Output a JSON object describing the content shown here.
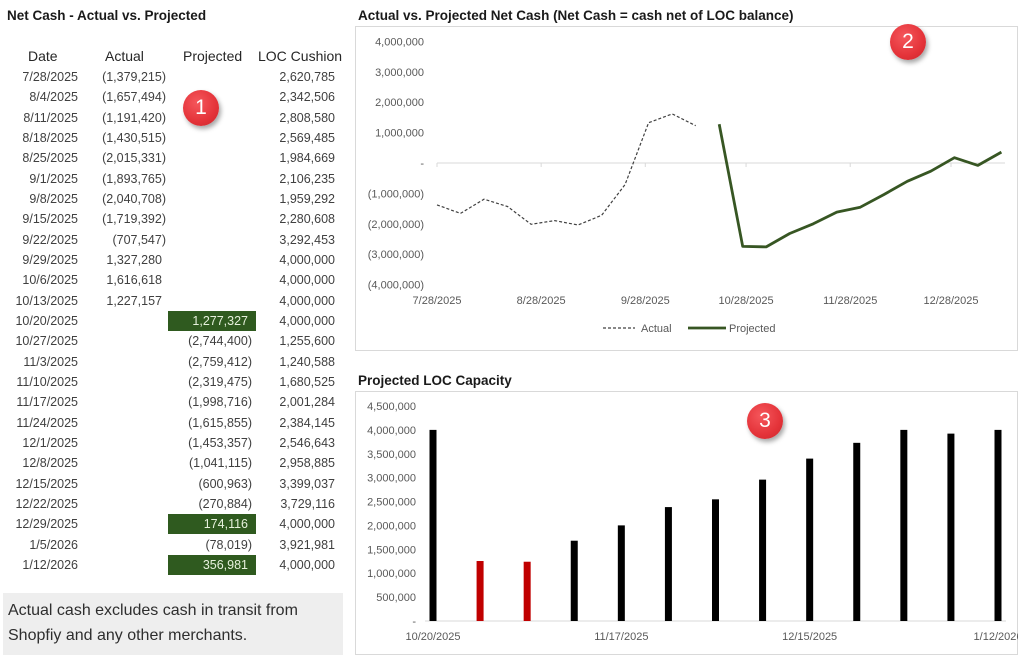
{
  "table": {
    "title": "Net Cash - Actual vs. Projected",
    "columns": [
      "Date",
      "Actual",
      "Projected",
      "LOC Cushion"
    ],
    "rows": [
      {
        "date": "7/28/2025",
        "actual": "(1,379,215)",
        "projected": "",
        "loc_cushion": "2,620,785",
        "highlight": false
      },
      {
        "date": "8/4/2025",
        "actual": "(1,657,494)",
        "projected": "",
        "loc_cushion": "2,342,506",
        "highlight": false
      },
      {
        "date": "8/11/2025",
        "actual": "(1,191,420)",
        "projected": "",
        "loc_cushion": "2,808,580",
        "highlight": false
      },
      {
        "date": "8/18/2025",
        "actual": "(1,430,515)",
        "projected": "",
        "loc_cushion": "2,569,485",
        "highlight": false
      },
      {
        "date": "8/25/2025",
        "actual": "(2,015,331)",
        "projected": "",
        "loc_cushion": "1,984,669",
        "highlight": false
      },
      {
        "date": "9/1/2025",
        "actual": "(1,893,765)",
        "projected": "",
        "loc_cushion": "2,106,235",
        "highlight": false
      },
      {
        "date": "9/8/2025",
        "actual": "(2,040,708)",
        "projected": "",
        "loc_cushion": "1,959,292",
        "highlight": false
      },
      {
        "date": "9/15/2025",
        "actual": "(1,719,392)",
        "projected": "",
        "loc_cushion": "2,280,608",
        "highlight": false
      },
      {
        "date": "9/22/2025",
        "actual": "(707,547)",
        "projected": "",
        "loc_cushion": "3,292,453",
        "highlight": false
      },
      {
        "date": "9/29/2025",
        "actual": "1,327,280",
        "projected": "",
        "loc_cushion": "4,000,000",
        "highlight": false
      },
      {
        "date": "10/6/2025",
        "actual": "1,616,618",
        "projected": "",
        "loc_cushion": "4,000,000",
        "highlight": false
      },
      {
        "date": "10/13/2025",
        "actual": "1,227,157",
        "projected": "",
        "loc_cushion": "4,000,000",
        "highlight": false
      },
      {
        "date": "10/20/2025",
        "actual": "",
        "projected": "1,277,327",
        "loc_cushion": "4,000,000",
        "highlight": true
      },
      {
        "date": "10/27/2025",
        "actual": "",
        "projected": "(2,744,400)",
        "loc_cushion": "1,255,600",
        "highlight": false
      },
      {
        "date": "11/3/2025",
        "actual": "",
        "projected": "(2,759,412)",
        "loc_cushion": "1,240,588",
        "highlight": false
      },
      {
        "date": "11/10/2025",
        "actual": "",
        "projected": "(2,319,475)",
        "loc_cushion": "1,680,525",
        "highlight": false
      },
      {
        "date": "11/17/2025",
        "actual": "",
        "projected": "(1,998,716)",
        "loc_cushion": "2,001,284",
        "highlight": false
      },
      {
        "date": "11/24/2025",
        "actual": "",
        "projected": "(1,615,855)",
        "loc_cushion": "2,384,145",
        "highlight": false
      },
      {
        "date": "12/1/2025",
        "actual": "",
        "projected": "(1,453,357)",
        "loc_cushion": "2,546,643",
        "highlight": false
      },
      {
        "date": "12/8/2025",
        "actual": "",
        "projected": "(1,041,115)",
        "loc_cushion": "2,958,885",
        "highlight": false
      },
      {
        "date": "12/15/2025",
        "actual": "",
        "projected": "(600,963)",
        "loc_cushion": "3,399,037",
        "highlight": false
      },
      {
        "date": "12/22/2025",
        "actual": "",
        "projected": "(270,884)",
        "loc_cushion": "3,729,116",
        "highlight": false
      },
      {
        "date": "12/29/2025",
        "actual": "",
        "projected": "174,116",
        "loc_cushion": "4,000,000",
        "highlight": true
      },
      {
        "date": "1/5/2026",
        "actual": "",
        "projected": "(78,019)",
        "loc_cushion": "3,921,981",
        "highlight": false
      },
      {
        "date": "1/12/2026",
        "actual": "",
        "projected": "356,981",
        "loc_cushion": "4,000,000",
        "highlight": true
      }
    ],
    "highlight_color": "#2f5a1f",
    "note": "Actual cash excludes cash in transit from Shopfiy and any other merchants."
  },
  "badges": [
    "1",
    "2",
    "3"
  ],
  "badge_color": "#e43339",
  "chart_data": [
    {
      "type": "line",
      "title": "Actual vs. Projected Net Cash (Net Cash = cash net of LOC balance)",
      "xlabel": "",
      "ylabel": "",
      "ylim": [
        -4000000,
        4000000
      ],
      "y_ticks": [
        4000000,
        3000000,
        2000000,
        1000000,
        0,
        -1000000,
        -2000000,
        -3000000,
        -4000000
      ],
      "y_tick_labels": [
        "4,000,000",
        "3,000,000",
        "2,000,000",
        "1,000,000",
        "-",
        "(1,000,000)",
        "(2,000,000)",
        "(3,000,000)",
        "(4,000,000)"
      ],
      "x_tick_labels": [
        "7/28/2025",
        "8/28/2025",
        "9/28/2025",
        "10/28/2025",
        "11/28/2025",
        "12/28/2025"
      ],
      "grid": false,
      "legend": "bottom",
      "series": [
        {
          "name": "Actual",
          "style": "dashed",
          "color": "#404040",
          "x": [
            "7/28/2025",
            "8/4/2025",
            "8/11/2025",
            "8/18/2025",
            "8/25/2025",
            "9/1/2025",
            "9/8/2025",
            "9/15/2025",
            "9/22/2025",
            "9/29/2025",
            "10/6/2025",
            "10/13/2025"
          ],
          "y": [
            -1379215,
            -1657494,
            -1191420,
            -1430515,
            -2015331,
            -1893765,
            -2040708,
            -1719392,
            -707547,
            1327280,
            1616618,
            1227157
          ]
        },
        {
          "name": "Projected",
          "style": "solid",
          "color": "#375623",
          "x": [
            "10/20/2025",
            "10/27/2025",
            "11/3/2025",
            "11/10/2025",
            "11/17/2025",
            "11/24/2025",
            "12/1/2025",
            "12/8/2025",
            "12/15/2025",
            "12/22/2025",
            "12/29/2025",
            "1/5/2026",
            "1/12/2026"
          ],
          "y": [
            1277327,
            -2744400,
            -2759412,
            -2319475,
            -1998716,
            -1615855,
            -1453357,
            -1041115,
            -600963,
            -270884,
            174116,
            -78019,
            356981
          ]
        }
      ]
    },
    {
      "type": "bar",
      "title": "Projected LOC Capacity",
      "xlabel": "",
      "ylabel": "",
      "ylim": [
        0,
        4500000
      ],
      "y_ticks": [
        4500000,
        4000000,
        3500000,
        3000000,
        2500000,
        2000000,
        1500000,
        1000000,
        500000,
        0
      ],
      "y_tick_labels": [
        "4,500,000",
        "4,000,000",
        "3,500,000",
        "3,000,000",
        "2,500,000",
        "2,000,000",
        "1,500,000",
        "1,000,000",
        "500,000",
        "-"
      ],
      "categories": [
        "10/20/2025",
        "10/27/2025",
        "11/3/2025",
        "11/10/2025",
        "11/17/2025",
        "11/24/2025",
        "12/1/2025",
        "12/8/2025",
        "12/15/2025",
        "12/22/2025",
        "12/29/2025",
        "1/5/2026",
        "1/12/2026"
      ],
      "values": [
        4000000,
        1255600,
        1240588,
        1680525,
        2001284,
        2384145,
        2546643,
        2958885,
        3399037,
        3729116,
        4000000,
        3921981,
        4000000
      ],
      "bar_colors": [
        "#000000",
        "#c00000",
        "#c00000",
        "#000000",
        "#000000",
        "#000000",
        "#000000",
        "#000000",
        "#000000",
        "#000000",
        "#000000",
        "#000000",
        "#000000"
      ],
      "x_tick_labels": [
        "10/20/2025",
        "11/17/2025",
        "12/15/2025",
        "1/12/2026"
      ],
      "grid": false,
      "legend": "none"
    }
  ]
}
